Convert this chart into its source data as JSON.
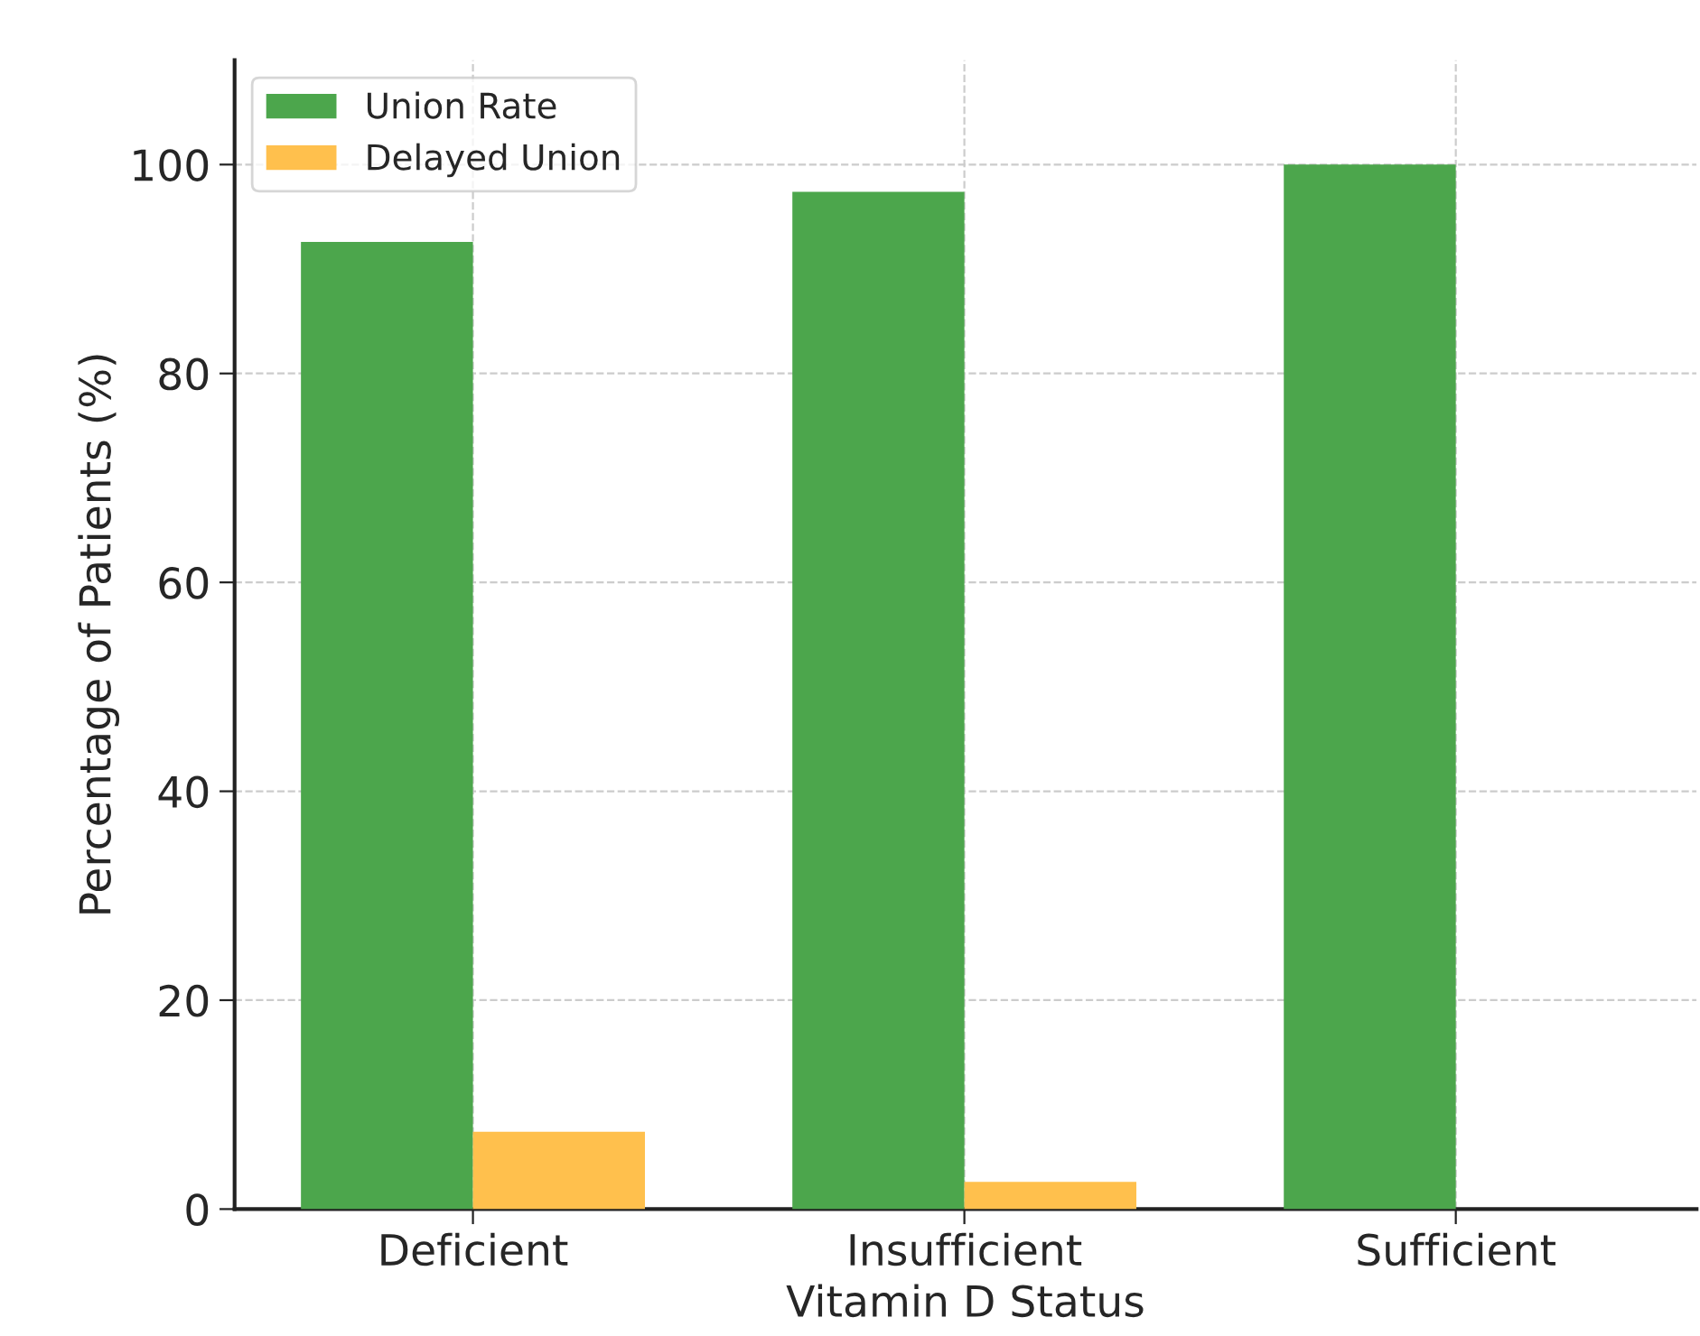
{
  "chart_data": {
    "type": "bar",
    "xlabel": "Vitamin D Status",
    "ylabel": "Percentage of Patients (%)",
    "categories": [
      "Deficient",
      "Insufficient",
      "Sufficient"
    ],
    "series": [
      {
        "name": "Union Rate",
        "color": "#4ca64c",
        "values": [
          92.6,
          97.4,
          100
        ]
      },
      {
        "name": "Delayed Union",
        "color": "#ffc04d",
        "values": [
          7.4,
          2.6,
          null
        ]
      }
    ],
    "ylim": [
      0,
      110
    ],
    "yticks": [
      0,
      20,
      40,
      60,
      80,
      100
    ],
    "grid": true,
    "legend": "top left"
  }
}
